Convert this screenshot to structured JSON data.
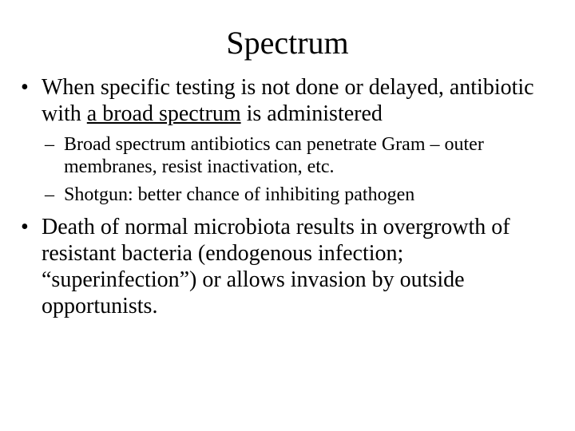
{
  "title": "Spectrum",
  "bullets": [
    {
      "pre": "When specific testing is not done or delayed, antibiotic with ",
      "underlined": "a broad spectrum",
      "post": " is administered",
      "sub": [
        "Broad spectrum antibiotics can penetrate Gram – outer membranes, resist inactivation, etc.",
        "Shotgun: better chance of inhibiting pathogen"
      ]
    },
    {
      "text": "Death of normal microbiota results in overgrowth of resistant bacteria (endogenous infection; “superinfection”) or allows invasion by outside opportunists."
    }
  ],
  "style": {
    "background": "#ffffff",
    "text_color": "#000000",
    "title_fontsize": 40,
    "level1_fontsize": 28,
    "level2_fontsize": 24,
    "font_family": "Times New Roman"
  }
}
